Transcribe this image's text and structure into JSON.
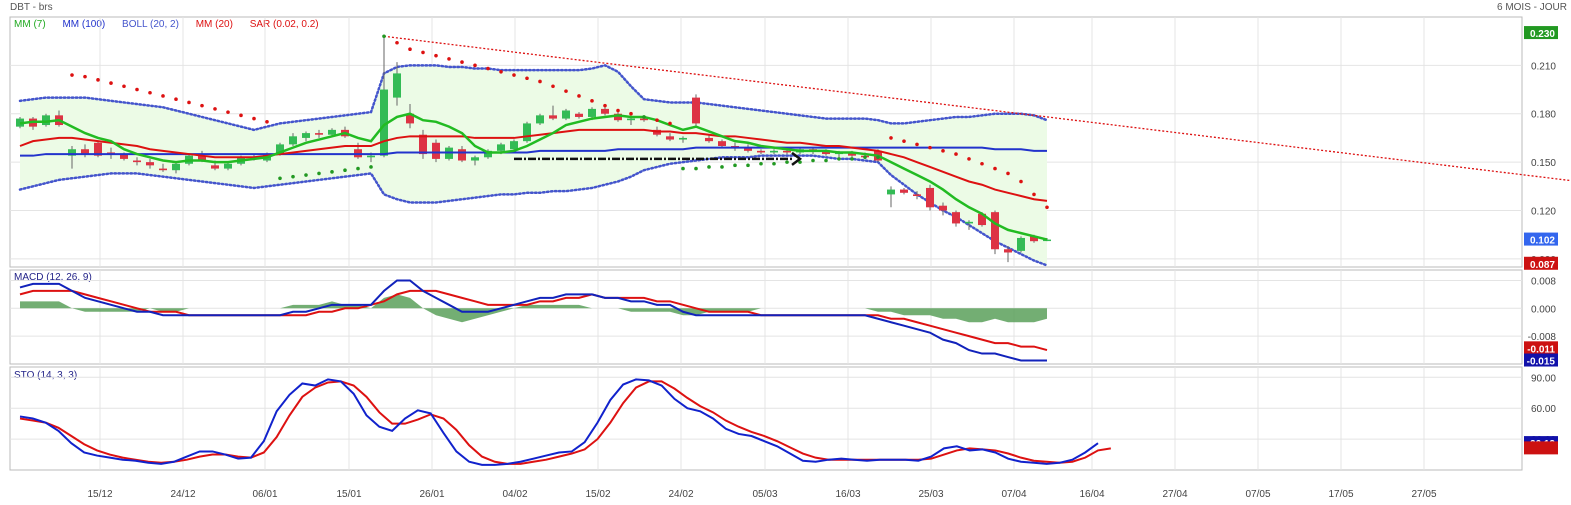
{
  "header": {
    "symbol": "DBT - brs",
    "period": "6 MOIS - JOUR"
  },
  "colors": {
    "green": "#22bb22",
    "blue": "#2233cc",
    "red": "#dd1111",
    "boll": "#4455cc",
    "up": "#33bb55",
    "down": "#dd3344",
    "area": "#5aa05a"
  },
  "price_panel": {
    "legend": [
      {
        "label": "MM (7)",
        "color": "#22aa22"
      },
      {
        "label": "MM (100)",
        "color": "#2233cc"
      },
      {
        "label": "BOLL (20, 2)",
        "color": "#4455cc"
      },
      {
        "label": "MM (20)",
        "color": "#dd1111"
      },
      {
        "label": "SAR (0.02, 0.2)",
        "color": "#dd1111"
      }
    ],
    "y_ticks": [
      "0.210",
      "0.180",
      "0.150",
      "0.120",
      "0.090"
    ],
    "badges": [
      {
        "text": "0.230",
        "value": 0.23,
        "color": "#229922"
      },
      {
        "text": "0.102",
        "value": 0.102,
        "color": "#3366ee"
      },
      {
        "text": "0.087",
        "value": 0.087,
        "color": "#cc1111"
      }
    ]
  },
  "macd_panel": {
    "legend": "MACD (12, 26, 9)",
    "y_ticks": [
      "0.008",
      "0.000",
      "-0.008"
    ],
    "badges": [
      {
        "text": "-0.011",
        "value": -0.0115,
        "color": "#cc1111"
      },
      {
        "text": "-0.015",
        "value": -0.015,
        "color": "#1111aa"
      }
    ]
  },
  "sto_panel": {
    "legend": "STO (14, 3, 3)",
    "y_ticks": [
      "90.00",
      "60.00",
      "30.00"
    ],
    "badges": [
      {
        "text": "26.12",
        "value": 26.12,
        "color": "#1111aa"
      },
      {
        "text": "",
        "value": 21,
        "color": "#cc1111"
      }
    ]
  },
  "x_ticks": [
    "15/12",
    "24/12",
    "06/01",
    "15/01",
    "26/01",
    "04/02",
    "15/02",
    "24/02",
    "05/03",
    "16/03",
    "25/03",
    "07/04",
    "16/04",
    "27/04",
    "07/05",
    "17/05",
    "27/05"
  ],
  "chart_data": {
    "type": "candlestick",
    "candles": [
      [
        0.172,
        0.178,
        0.171,
        0.177
      ],
      [
        0.177,
        0.178,
        0.17,
        0.172
      ],
      [
        0.173,
        0.18,
        0.172,
        0.179
      ],
      [
        0.179,
        0.182,
        0.172,
        0.173
      ],
      [
        0.154,
        0.16,
        0.146,
        0.158
      ],
      [
        0.158,
        0.161,
        0.153,
        0.155
      ],
      [
        0.162,
        0.163,
        0.153,
        0.154
      ],
      [
        0.156,
        0.159,
        0.152,
        0.155
      ],
      [
        0.155,
        0.156,
        0.151,
        0.152
      ],
      [
        0.151,
        0.153,
        0.148,
        0.15
      ],
      [
        0.15,
        0.152,
        0.146,
        0.148
      ],
      [
        0.146,
        0.149,
        0.144,
        0.145
      ],
      [
        0.145,
        0.15,
        0.143,
        0.149
      ],
      [
        0.149,
        0.155,
        0.148,
        0.154
      ],
      [
        0.154,
        0.157,
        0.15,
        0.151
      ],
      [
        0.148,
        0.151,
        0.145,
        0.146
      ],
      [
        0.146,
        0.15,
        0.145,
        0.149
      ],
      [
        0.149,
        0.154,
        0.148,
        0.153
      ],
      [
        0.153,
        0.155,
        0.151,
        0.152
      ],
      [
        0.151,
        0.156,
        0.15,
        0.155
      ],
      [
        0.155,
        0.162,
        0.154,
        0.161
      ],
      [
        0.161,
        0.168,
        0.16,
        0.166
      ],
      [
        0.165,
        0.169,
        0.163,
        0.168
      ],
      [
        0.168,
        0.17,
        0.165,
        0.167
      ],
      [
        0.167,
        0.171,
        0.166,
        0.17
      ],
      [
        0.17,
        0.172,
        0.165,
        0.166
      ],
      [
        0.158,
        0.162,
        0.152,
        0.153
      ],
      [
        0.153,
        0.156,
        0.15,
        0.154
      ],
      [
        0.154,
        0.228,
        0.153,
        0.195
      ],
      [
        0.19,
        0.212,
        0.185,
        0.205
      ],
      [
        0.18,
        0.186,
        0.171,
        0.174
      ],
      [
        0.167,
        0.17,
        0.152,
        0.155
      ],
      [
        0.162,
        0.164,
        0.15,
        0.152
      ],
      [
        0.152,
        0.16,
        0.151,
        0.159
      ],
      [
        0.158,
        0.16,
        0.15,
        0.151
      ],
      [
        0.151,
        0.154,
        0.148,
        0.153
      ],
      [
        0.153,
        0.158,
        0.152,
        0.157
      ],
      [
        0.157,
        0.162,
        0.155,
        0.161
      ],
      [
        0.158,
        0.164,
        0.157,
        0.163
      ],
      [
        0.163,
        0.175,
        0.162,
        0.174
      ],
      [
        0.174,
        0.18,
        0.173,
        0.179
      ],
      [
        0.179,
        0.185,
        0.176,
        0.177
      ],
      [
        0.177,
        0.183,
        0.176,
        0.182
      ],
      [
        0.18,
        0.181,
        0.177,
        0.178
      ],
      [
        0.178,
        0.184,
        0.176,
        0.183
      ],
      [
        0.183,
        0.184,
        0.179,
        0.18
      ],
      [
        0.18,
        0.181,
        0.175,
        0.176
      ],
      [
        0.176,
        0.178,
        0.173,
        0.177
      ],
      [
        0.177,
        0.179,
        0.175,
        0.176
      ],
      [
        0.17,
        0.172,
        0.166,
        0.167
      ],
      [
        0.166,
        0.168,
        0.163,
        0.164
      ],
      [
        0.164,
        0.166,
        0.162,
        0.165
      ],
      [
        0.19,
        0.192,
        0.172,
        0.174
      ],
      [
        0.165,
        0.167,
        0.162,
        0.163
      ],
      [
        0.163,
        0.164,
        0.159,
        0.16
      ],
      [
        0.16,
        0.162,
        0.157,
        0.159
      ],
      [
        0.159,
        0.161,
        0.156,
        0.157
      ],
      [
        0.157,
        0.158,
        0.155,
        0.156
      ],
      [
        0.156,
        0.158,
        0.155,
        0.157
      ],
      [
        0.157,
        0.159,
        0.155,
        0.156
      ],
      [
        0.156,
        0.159,
        0.155,
        0.158
      ],
      [
        0.158,
        0.159,
        0.155,
        0.157
      ],
      [
        0.157,
        0.158,
        0.154,
        0.155
      ],
      [
        0.155,
        0.157,
        0.153,
        0.156
      ],
      [
        0.156,
        0.157,
        0.153,
        0.154
      ],
      [
        0.154,
        0.156,
        0.152,
        0.153
      ],
      [
        0.157,
        0.158,
        0.15,
        0.151
      ],
      [
        0.13,
        0.135,
        0.122,
        0.133
      ],
      [
        0.133,
        0.134,
        0.13,
        0.131
      ],
      [
        0.13,
        0.132,
        0.127,
        0.129
      ],
      [
        0.134,
        0.136,
        0.12,
        0.122
      ],
      [
        0.123,
        0.125,
        0.117,
        0.12
      ],
      [
        0.119,
        0.12,
        0.11,
        0.112
      ],
      [
        0.112,
        0.114,
        0.108,
        0.113
      ],
      [
        0.118,
        0.119,
        0.11,
        0.111
      ],
      [
        0.119,
        0.12,
        0.093,
        0.096
      ],
      [
        0.096,
        0.098,
        0.088,
        0.094
      ],
      [
        0.095,
        0.104,
        0.094,
        0.103
      ],
      [
        0.104,
        0.105,
        0.1,
        0.101
      ],
      [
        0.102,
        0.103,
        0.101,
        0.102
      ]
    ],
    "price_range": [
      0.085,
      0.235
    ],
    "ma7": [
      0.174,
      0.175,
      0.175,
      0.176,
      0.172,
      0.168,
      0.165,
      0.163,
      0.158,
      0.155,
      0.153,
      0.151,
      0.15,
      0.151,
      0.151,
      0.15,
      0.15,
      0.151,
      0.152,
      0.153,
      0.156,
      0.159,
      0.162,
      0.164,
      0.166,
      0.168,
      0.165,
      0.163,
      0.173,
      0.178,
      0.18,
      0.176,
      0.175,
      0.172,
      0.168,
      0.16,
      0.156,
      0.156,
      0.157,
      0.16,
      0.164,
      0.168,
      0.173,
      0.175,
      0.177,
      0.178,
      0.179,
      0.178,
      0.178,
      0.176,
      0.173,
      0.17,
      0.172,
      0.169,
      0.166,
      0.163,
      0.162,
      0.16,
      0.159,
      0.158,
      0.157,
      0.157,
      0.157,
      0.156,
      0.156,
      0.155,
      0.154,
      0.15,
      0.146,
      0.142,
      0.138,
      0.133,
      0.127,
      0.122,
      0.118,
      0.112,
      0.108,
      0.106,
      0.104,
      0.102
    ],
    "ma20": [
      0.16,
      0.163,
      0.164,
      0.165,
      0.165,
      0.164,
      0.163,
      0.162,
      0.161,
      0.16,
      0.158,
      0.157,
      0.156,
      0.155,
      0.154,
      0.153,
      0.153,
      0.153,
      0.153,
      0.154,
      0.155,
      0.156,
      0.157,
      0.158,
      0.159,
      0.16,
      0.16,
      0.16,
      0.163,
      0.165,
      0.166,
      0.166,
      0.166,
      0.166,
      0.166,
      0.165,
      0.165,
      0.165,
      0.165,
      0.166,
      0.167,
      0.168,
      0.169,
      0.17,
      0.17,
      0.17,
      0.17,
      0.17,
      0.17,
      0.169,
      0.169,
      0.168,
      0.168,
      0.167,
      0.166,
      0.166,
      0.165,
      0.164,
      0.163,
      0.162,
      0.162,
      0.161,
      0.16,
      0.16,
      0.159,
      0.158,
      0.157,
      0.155,
      0.153,
      0.15,
      0.147,
      0.144,
      0.141,
      0.138,
      0.136,
      0.133,
      0.131,
      0.129,
      0.127,
      0.126
    ],
    "ma100": [
      0.154,
      0.154,
      0.155,
      0.155,
      0.155,
      0.155,
      0.155,
      0.155,
      0.155,
      0.155,
      0.155,
      0.155,
      0.155,
      0.155,
      0.155,
      0.155,
      0.155,
      0.155,
      0.155,
      0.155,
      0.155,
      0.155,
      0.155,
      0.155,
      0.155,
      0.155,
      0.155,
      0.155,
      0.155,
      0.156,
      0.156,
      0.156,
      0.156,
      0.156,
      0.156,
      0.156,
      0.156,
      0.156,
      0.156,
      0.156,
      0.157,
      0.157,
      0.157,
      0.157,
      0.157,
      0.157,
      0.158,
      0.158,
      0.158,
      0.158,
      0.158,
      0.158,
      0.159,
      0.159,
      0.159,
      0.159,
      0.159,
      0.159,
      0.159,
      0.159,
      0.159,
      0.159,
      0.159,
      0.159,
      0.159,
      0.159,
      0.159,
      0.159,
      0.159,
      0.159,
      0.159,
      0.159,
      0.159,
      0.159,
      0.159,
      0.158,
      0.158,
      0.158,
      0.157,
      0.157
    ],
    "boll_upper": [
      0.188,
      0.189,
      0.19,
      0.19,
      0.19,
      0.19,
      0.189,
      0.188,
      0.187,
      0.186,
      0.185,
      0.184,
      0.182,
      0.18,
      0.178,
      0.176,
      0.174,
      0.172,
      0.17,
      0.172,
      0.174,
      0.175,
      0.176,
      0.177,
      0.178,
      0.179,
      0.18,
      0.181,
      0.205,
      0.209,
      0.21,
      0.21,
      0.21,
      0.209,
      0.209,
      0.208,
      0.208,
      0.207,
      0.207,
      0.207,
      0.207,
      0.207,
      0.207,
      0.207,
      0.208,
      0.21,
      0.206,
      0.197,
      0.189,
      0.188,
      0.187,
      0.187,
      0.187,
      0.186,
      0.185,
      0.184,
      0.183,
      0.182,
      0.181,
      0.18,
      0.179,
      0.178,
      0.177,
      0.177,
      0.177,
      0.177,
      0.176,
      0.174,
      0.174,
      0.175,
      0.176,
      0.177,
      0.178,
      0.178,
      0.179,
      0.18,
      0.18,
      0.18,
      0.179,
      0.176
    ],
    "boll_lower": [
      0.133,
      0.135,
      0.137,
      0.139,
      0.14,
      0.141,
      0.142,
      0.143,
      0.143,
      0.143,
      0.142,
      0.141,
      0.14,
      0.139,
      0.138,
      0.137,
      0.136,
      0.135,
      0.134,
      0.135,
      0.136,
      0.137,
      0.138,
      0.139,
      0.14,
      0.141,
      0.142,
      0.143,
      0.13,
      0.127,
      0.125,
      0.125,
      0.125,
      0.126,
      0.127,
      0.128,
      0.129,
      0.13,
      0.13,
      0.131,
      0.131,
      0.132,
      0.132,
      0.133,
      0.134,
      0.136,
      0.138,
      0.141,
      0.145,
      0.147,
      0.149,
      0.15,
      0.151,
      0.152,
      0.153,
      0.153,
      0.153,
      0.154,
      0.154,
      0.154,
      0.154,
      0.154,
      0.153,
      0.152,
      0.152,
      0.151,
      0.15,
      0.142,
      0.136,
      0.13,
      0.125,
      0.12,
      0.116,
      0.111,
      0.106,
      0.101,
      0.097,
      0.093,
      0.089,
      0.086
    ],
    "sar": [
      null,
      null,
      null,
      null,
      0.204,
      0.203,
      0.201,
      0.199,
      0.197,
      0.195,
      0.193,
      0.191,
      0.189,
      0.187,
      0.185,
      0.183,
      0.181,
      0.179,
      0.177,
      0.175,
      0.14,
      0.141,
      0.142,
      0.143,
      0.144,
      0.145,
      0.146,
      0.147,
      0.228,
      0.224,
      0.22,
      0.218,
      0.216,
      0.214,
      0.212,
      0.21,
      0.208,
      0.206,
      0.204,
      0.202,
      0.2,
      0.197,
      0.194,
      0.191,
      0.188,
      0.185,
      0.182,
      0.18,
      0.178,
      0.176,
      0.174,
      0.146,
      0.146,
      0.147,
      0.147,
      0.148,
      0.148,
      0.149,
      0.149,
      0.15,
      0.15,
      0.151,
      0.151,
      0.152,
      0.152,
      0.153,
      0.153,
      0.165,
      0.163,
      0.161,
      0.159,
      0.157,
      0.155,
      0.152,
      0.149,
      0.146,
      0.143,
      0.138,
      0.13,
      0.122
    ],
    "trendline": {
      "from": [
        28,
        0.228
      ],
      "to": [
        127,
        0.131
      ]
    },
    "arrow": {
      "from": [
        38,
        0.152
      ],
      "to": [
        60,
        0.152
      ]
    },
    "macd_range": [
      -0.016,
      0.011
    ],
    "macd": [
      0.006,
      0.007,
      0.007,
      0.007,
      0.005,
      0.003,
      0.002,
      0.001,
      0.0,
      -0.001,
      -0.001,
      -0.002,
      -0.002,
      -0.002,
      -0.002,
      -0.002,
      -0.002,
      -0.002,
      -0.002,
      -0.002,
      -0.002,
      -0.001,
      -0.001,
      0.0,
      0.001,
      0.001,
      0.001,
      0.001,
      0.005,
      0.008,
      0.008,
      0.005,
      0.003,
      0.001,
      -0.001,
      -0.001,
      -0.001,
      0.0,
      0.001,
      0.002,
      0.003,
      0.003,
      0.004,
      0.004,
      0.004,
      0.003,
      0.003,
      0.002,
      0.002,
      0.001,
      0.001,
      -0.001,
      -0.002,
      -0.002,
      -0.002,
      -0.002,
      -0.002,
      -0.002,
      -0.002,
      -0.002,
      -0.002,
      -0.002,
      -0.002,
      -0.002,
      -0.002,
      -0.002,
      -0.003,
      -0.004,
      -0.005,
      -0.006,
      -0.007,
      -0.009,
      -0.01,
      -0.012,
      -0.013,
      -0.013,
      -0.014,
      -0.015,
      -0.015,
      -0.015
    ],
    "macd_signal": [
      0.004,
      0.005,
      0.005,
      0.005,
      0.005,
      0.004,
      0.003,
      0.002,
      0.001,
      0.0,
      -0.001,
      -0.001,
      -0.001,
      -0.002,
      -0.002,
      -0.002,
      -0.002,
      -0.002,
      -0.002,
      -0.002,
      -0.002,
      -0.002,
      -0.002,
      -0.001,
      -0.001,
      0.0,
      0.0,
      0.001,
      0.002,
      0.004,
      0.005,
      0.005,
      0.005,
      0.004,
      0.003,
      0.002,
      0.001,
      0.001,
      0.001,
      0.001,
      0.002,
      0.002,
      0.003,
      0.003,
      0.004,
      0.003,
      0.003,
      0.003,
      0.003,
      0.002,
      0.002,
      0.001,
      0.0,
      -0.001,
      -0.001,
      -0.001,
      -0.001,
      -0.002,
      -0.002,
      -0.002,
      -0.002,
      -0.002,
      -0.002,
      -0.002,
      -0.002,
      -0.002,
      -0.002,
      -0.003,
      -0.003,
      -0.004,
      -0.005,
      -0.006,
      -0.007,
      -0.008,
      -0.009,
      -0.01,
      -0.01,
      -0.011,
      -0.011,
      -0.012
    ],
    "sto_range": [
      0,
      100
    ],
    "sto_k": [
      52,
      50,
      46,
      38,
      26,
      17,
      14,
      12,
      10,
      9,
      7,
      6,
      8,
      13,
      18,
      18,
      15,
      11,
      12,
      28,
      57,
      73,
      84,
      82,
      88,
      86,
      74,
      53,
      42,
      38,
      50,
      58,
      55,
      36,
      18,
      8,
      5,
      5,
      6,
      8,
      11,
      14,
      17,
      18,
      27,
      46,
      68,
      83,
      88,
      87,
      82,
      69,
      60,
      57,
      50,
      40,
      35,
      33,
      28,
      23,
      16,
      9,
      8,
      10,
      11,
      10,
      9,
      10,
      10,
      10,
      9,
      13,
      21,
      23,
      19,
      20,
      17,
      11,
      8,
      7,
      6,
      7,
      10,
      17,
      26
    ],
    "sto_d": [
      50,
      48,
      46,
      41,
      33,
      25,
      19,
      15,
      12,
      10,
      8,
      7,
      8,
      10,
      13,
      15,
      15,
      13,
      12,
      17,
      32,
      53,
      71,
      80,
      85,
      86,
      82,
      71,
      56,
      45,
      45,
      49,
      54,
      50,
      39,
      24,
      13,
      8,
      6,
      6,
      8,
      10,
      13,
      16,
      20,
      30,
      46,
      65,
      80,
      86,
      86,
      79,
      70,
      62,
      56,
      48,
      42,
      37,
      33,
      28,
      22,
      16,
      12,
      10,
      10,
      10,
      10,
      10,
      10,
      10,
      10,
      11,
      15,
      19,
      21,
      20,
      19,
      16,
      12,
      9,
      8,
      7,
      8,
      12,
      19,
      21
    ]
  }
}
